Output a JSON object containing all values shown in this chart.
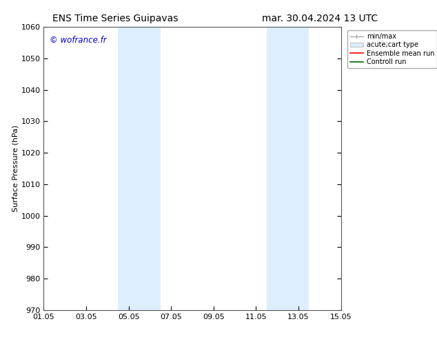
{
  "title_left": "ENS Time Series Guipavas",
  "title_right": "mar. 30.04.2024 13 UTC",
  "ylabel": "Surface Pressure (hPa)",
  "ylim": [
    970,
    1060
  ],
  "yticks": [
    970,
    980,
    990,
    1000,
    1010,
    1020,
    1030,
    1040,
    1050,
    1060
  ],
  "xtick_labels": [
    "01.05",
    "03.05",
    "05.05",
    "07.05",
    "09.05",
    "11.05",
    "13.05",
    "15.05"
  ],
  "xtick_positions": [
    0,
    2,
    4,
    6,
    8,
    10,
    12,
    14
  ],
  "xmin": 0,
  "xmax": 14,
  "shaded_bands": [
    {
      "xmin": 3.5,
      "xmax": 5.5,
      "color": "#ddeeff"
    },
    {
      "xmin": 10.5,
      "xmax": 12.5,
      "color": "#ddeeff"
    }
  ],
  "watermark": "© wofrance.fr",
  "watermark_color": "#0000cc",
  "legend_labels": [
    "min/max",
    "acute;cart type",
    "Ensemble mean run",
    "Controll run"
  ],
  "background_color": "#ffffff",
  "title_fontsize": 10,
  "axis_label_fontsize": 8,
  "tick_fontsize": 8
}
